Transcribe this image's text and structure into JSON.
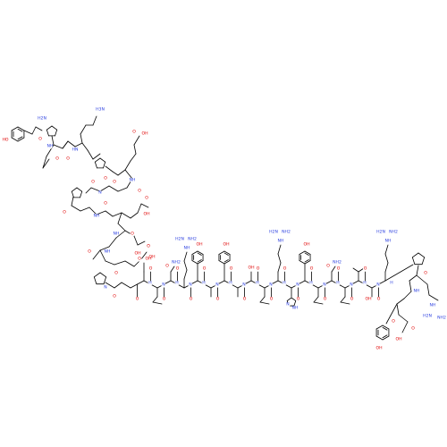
{
  "molecule": {
    "atom_colors": {
      "O": "#e00000",
      "N": "#2a3ee0",
      "H": "#000000"
    },
    "labels": {
      "oh": "OH",
      "ho": "HO",
      "o": "O",
      "n": "N",
      "h": "H",
      "nh": "NH",
      "hn": "HN",
      "nh2": "NH2",
      "h2n": "H2N",
      "h3n": "H3N",
      "oxygen_atoms": [
        "O",
        "O",
        "O",
        "O",
        "O",
        "O",
        "O",
        "O",
        "O",
        "O",
        "O",
        "O",
        "O",
        "O",
        "O",
        "O",
        "O",
        "O",
        "O",
        "O",
        "O",
        "O",
        "O",
        "O",
        "O",
        "O",
        "O",
        "O",
        "O",
        "O",
        "O",
        "O",
        "O",
        "O",
        "O",
        "O",
        "O",
        "O",
        "O",
        "O"
      ],
      "nitrogen_atoms": [
        "N",
        "N",
        "N",
        "N",
        "N",
        "N",
        "N",
        "N",
        "N",
        "N",
        "N",
        "N",
        "N",
        "N",
        "N",
        "N",
        "N",
        "N",
        "N",
        "N",
        "N",
        "N",
        "N",
        "N",
        "N",
        "N",
        "N",
        "N",
        "N",
        "N",
        "N",
        "N",
        "N",
        "N",
        "N",
        "N"
      ]
    }
  }
}
